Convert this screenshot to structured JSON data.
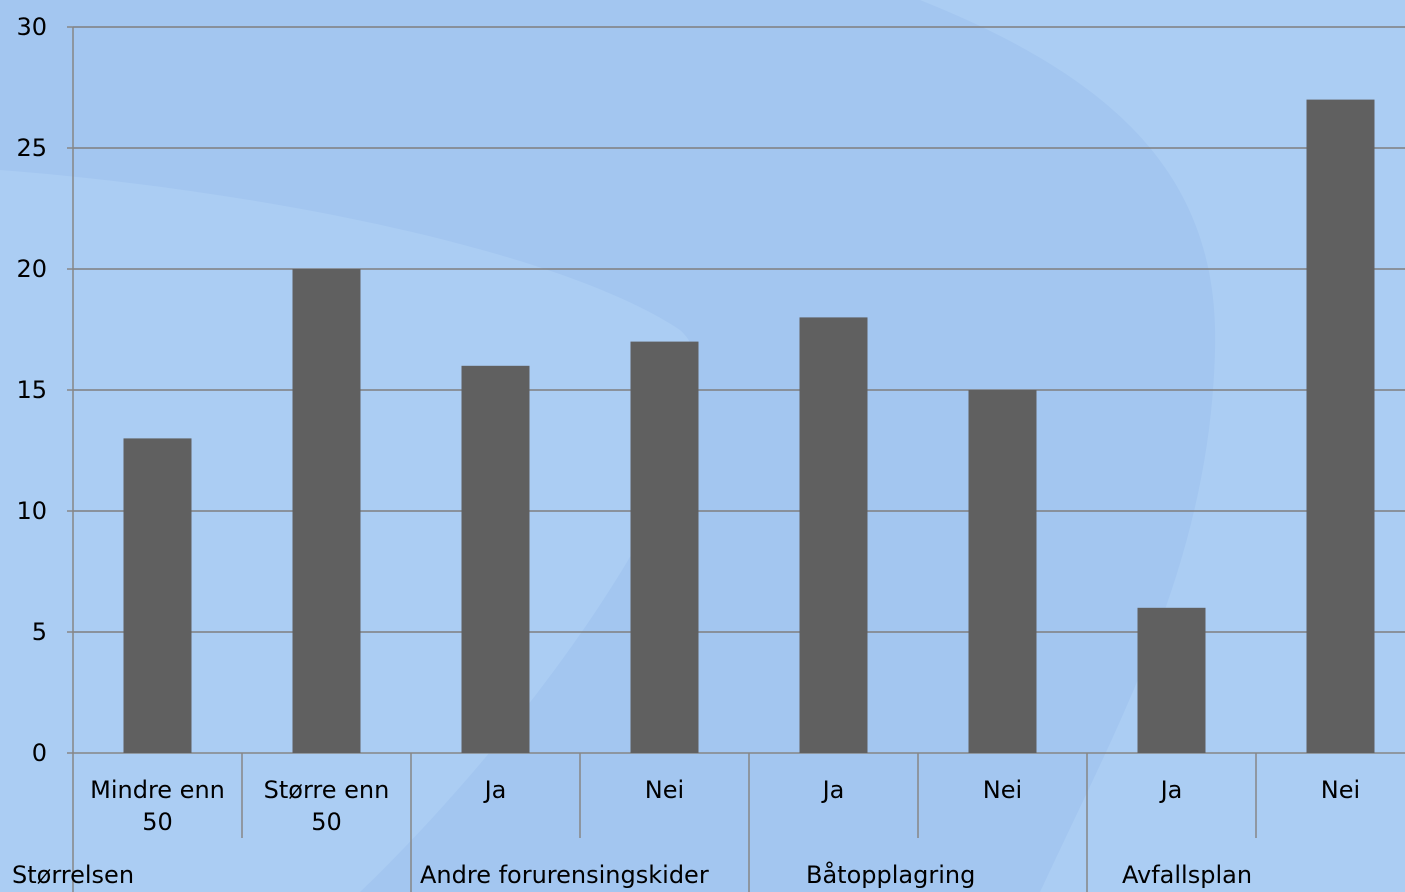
{
  "chart_data": {
    "type": "bar",
    "categories": [
      "Mindre enn 50",
      "Større enn 50",
      "Ja",
      "Nei",
      "Ja",
      "Nei",
      "Ja",
      "Nei"
    ],
    "category_lines": [
      [
        "Mindre enn",
        "50"
      ],
      [
        "Større enn",
        "50"
      ],
      [
        "Ja"
      ],
      [
        "Nei"
      ],
      [
        "Ja"
      ],
      [
        "Nei"
      ],
      [
        "Ja"
      ],
      [
        "Nei"
      ]
    ],
    "groups": [
      {
        "label": "Størrelsen",
        "count": 2
      },
      {
        "label": "Andre forurensingskider",
        "count": 2
      },
      {
        "label": "Båtopplagring",
        "count": 2
      },
      {
        "label": "Avfallsplan",
        "count": 2
      }
    ],
    "values": [
      13,
      20,
      16,
      17,
      18,
      15,
      6,
      27
    ],
    "ylim": [
      0,
      30
    ],
    "yticks": [
      0,
      5,
      10,
      15,
      20,
      25,
      30
    ],
    "title": "",
    "xlabel": "",
    "ylabel": "",
    "grid": true,
    "legend": "none",
    "colors": {
      "bar": "#606060",
      "background": "#a3c6f0",
      "background_light": "#abcdf3",
      "gridline": "#7f7f7f",
      "axis": "#868686"
    }
  }
}
